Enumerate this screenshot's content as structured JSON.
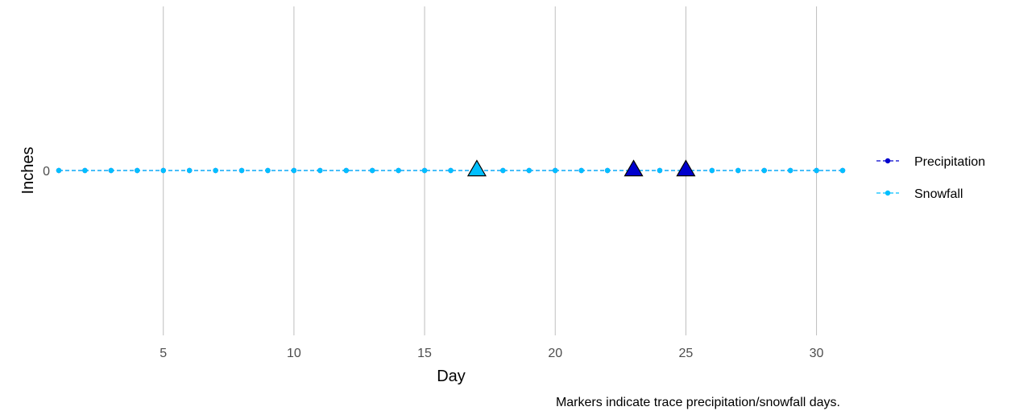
{
  "chart_data": {
    "type": "line",
    "title": "",
    "xlabel": "Day",
    "ylabel": "Inches",
    "caption": "Markers indicate trace precipitation/snowfall days.",
    "xlim": [
      1,
      31
    ],
    "x_ticks": [
      5,
      10,
      15,
      20,
      25,
      30
    ],
    "y_ticks": [
      0
    ],
    "grid": "vertical-major",
    "legend_position": "right",
    "x": [
      1,
      2,
      3,
      4,
      5,
      6,
      7,
      8,
      9,
      10,
      11,
      12,
      13,
      14,
      15,
      16,
      17,
      18,
      19,
      20,
      21,
      22,
      23,
      24,
      25,
      26,
      27,
      28,
      29,
      30,
      31
    ],
    "series": [
      {
        "name": "Precipitation",
        "color": "#0000CD",
        "values": [
          0,
          0,
          0,
          0,
          0,
          0,
          0,
          0,
          0,
          0,
          0,
          0,
          0,
          0,
          0,
          0,
          0,
          0,
          0,
          0,
          0,
          0,
          0,
          0,
          0,
          0,
          0,
          0,
          0,
          0,
          0
        ],
        "trace_days": [
          23,
          25
        ]
      },
      {
        "name": "Snowfall",
        "color": "#00BFFF",
        "values": [
          0,
          0,
          0,
          0,
          0,
          0,
          0,
          0,
          0,
          0,
          0,
          0,
          0,
          0,
          0,
          0,
          0,
          0,
          0,
          0,
          0,
          0,
          0,
          0,
          0,
          0,
          0,
          0,
          0,
          0,
          0
        ],
        "trace_days": [
          17
        ]
      }
    ]
  }
}
